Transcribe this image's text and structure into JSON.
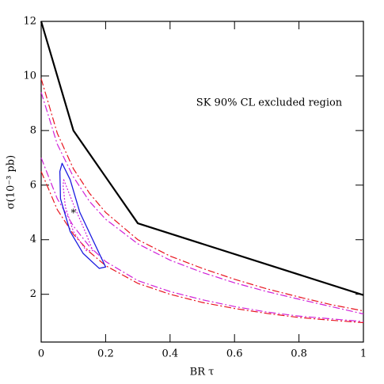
{
  "chart_data": {
    "type": "line",
    "x_label": "BR τ",
    "y_label": "σ(10⁻³ pb)",
    "annotation": "SK 90% CL excluded region",
    "xlim": [
      0,
      1
    ],
    "ylim": [
      0.25,
      12
    ],
    "xticks": [
      0,
      0.2,
      0.4,
      0.6,
      0.8,
      1
    ],
    "yticks": [
      2,
      4,
      6,
      8,
      10,
      12
    ],
    "series": [
      {
        "color": "#000000",
        "style": "solid",
        "width": 2.2,
        "x": [
          0,
          0.1,
          0.3,
          1
        ],
        "values": [
          12,
          8,
          4.6,
          1.97
        ]
      },
      {
        "color": "#e8141e",
        "style": "dashdot",
        "width": 1.2,
        "x": [
          0,
          0.05,
          0.1,
          0.15,
          0.2,
          0.3,
          0.4,
          0.5,
          0.6,
          0.7,
          0.8,
          0.9,
          1
        ],
        "values": [
          9.9,
          7.9,
          6.6,
          5.7,
          5.0,
          4.0,
          3.4,
          2.95,
          2.55,
          2.2,
          1.9,
          1.62,
          1.39
        ]
      },
      {
        "color": "#d020d8",
        "style": "dashdot",
        "width": 1.2,
        "x": [
          0,
          0.05,
          0.1,
          0.15,
          0.2,
          0.3,
          0.4,
          0.5,
          0.6,
          0.7,
          0.8,
          0.9,
          1
        ],
        "values": [
          9.4,
          7.5,
          6.3,
          5.4,
          4.75,
          3.85,
          3.25,
          2.8,
          2.42,
          2.1,
          1.82,
          1.55,
          1.28
        ]
      },
      {
        "color": "#d020d8",
        "style": "dashdot",
        "width": 1.2,
        "x": [
          0,
          0.05,
          0.1,
          0.15,
          0.2,
          0.3,
          0.4,
          0.5,
          0.6,
          0.7,
          0.8,
          0.9,
          1
        ],
        "values": [
          7.0,
          5.5,
          4.5,
          3.75,
          3.2,
          2.5,
          2.1,
          1.8,
          1.55,
          1.35,
          1.2,
          1.1,
          1.0
        ]
      },
      {
        "color": "#e8141e",
        "style": "dashdot",
        "width": 1.2,
        "x": [
          0,
          0.05,
          0.1,
          0.15,
          0.2,
          0.3,
          0.4,
          0.5,
          0.6,
          0.7,
          0.8,
          0.9,
          1
        ],
        "values": [
          6.5,
          5.1,
          4.2,
          3.55,
          3.05,
          2.4,
          2.0,
          1.7,
          1.48,
          1.3,
          1.15,
          1.05,
          0.96
        ]
      },
      {
        "color": "#1a1ae0",
        "style": "solid",
        "width": 1.3,
        "closed": true,
        "x": [
          0.065,
          0.09,
          0.12,
          0.16,
          0.2,
          0.18,
          0.13,
          0.09,
          0.06,
          0.058
        ],
        "values": [
          6.8,
          6.2,
          5.0,
          4.0,
          3.0,
          2.95,
          3.5,
          4.3,
          5.5,
          6.5
        ]
      },
      {
        "color": "#d020d8",
        "style": "dotted",
        "width": 1.2,
        "closed": true,
        "x": [
          0.07,
          0.1,
          0.14,
          0.16,
          0.14,
          0.1,
          0.075,
          0.068
        ],
        "values": [
          6.2,
          5.3,
          4.2,
          3.6,
          3.6,
          4.3,
          5.2,
          6.0
        ]
      },
      {
        "color": "#000000",
        "style": "star",
        "width": 1,
        "x": [
          0.1
        ],
        "values": [
          5.04
        ]
      }
    ]
  }
}
